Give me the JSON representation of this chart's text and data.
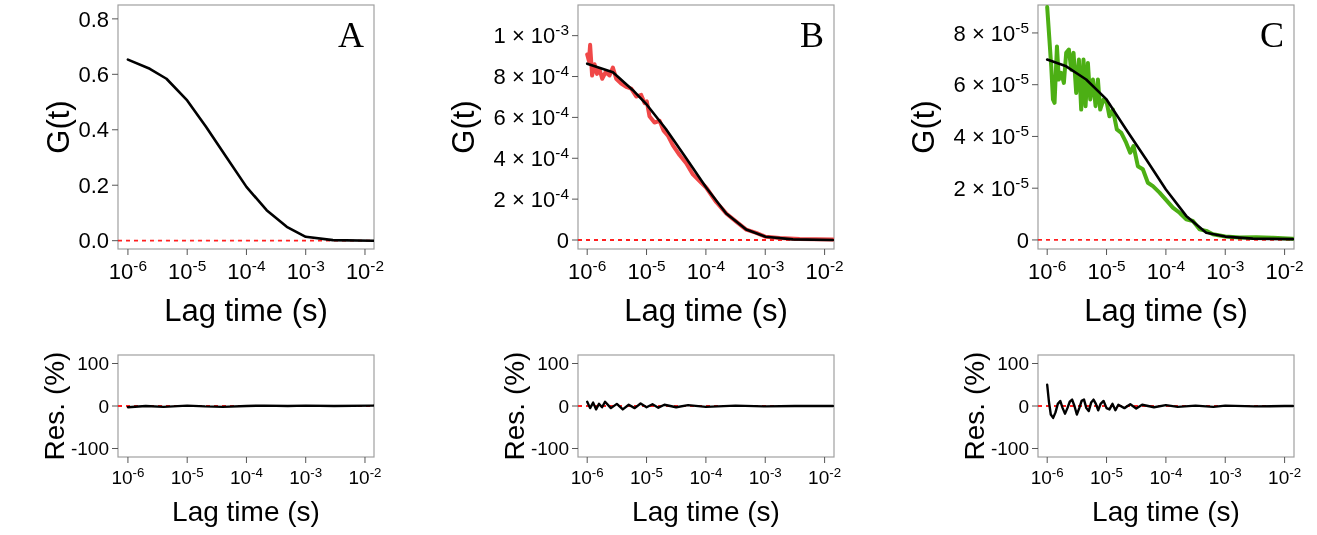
{
  "chart_data": [
    {
      "type": "line",
      "annotations": [
        "A"
      ],
      "xlabel": "Lag time (s)",
      "ylabel": "G(t)",
      "log": "x",
      "xlim": [
        6.8e-07,
        0.0142
      ],
      "ylim": [
        -0.03,
        0.85
      ],
      "xticks": [
        {
          "value": 1e-06,
          "label": "10$^{-6}$"
        },
        {
          "value": 1e-05,
          "label": "10$^{-5}$"
        },
        {
          "value": 0.0001,
          "label": "10$^{-4}$"
        },
        {
          "value": 0.001,
          "label": "10$^{-3}$"
        },
        {
          "value": 0.01,
          "label": "10$^{-2}$"
        }
      ],
      "yticks": [
        {
          "value": 0,
          "label": "0.0"
        },
        {
          "value": 0.2,
          "label": "0.2"
        },
        {
          "value": 0.4,
          "label": "0.4"
        },
        {
          "value": 0.6,
          "label": "0.6"
        },
        {
          "value": 0.8,
          "label": "0.8"
        }
      ],
      "ref_lines": [
        {
          "axis": "y",
          "value": 0,
          "color": "#ff2020",
          "line_style": "dashed"
        }
      ],
      "series": [
        {
          "color": "#000000",
          "x": [
            1e-06,
            2.34e-06,
            4.47e-06,
            1e-05,
            2.09e-05,
            4.57e-05,
            0.0001,
            0.000219,
            0.000479,
            0.001,
            0.00288,
            0.014
          ],
          "values": [
            0.653,
            0.62,
            0.584,
            0.506,
            0.41,
            0.302,
            0.194,
            0.11,
            0.05,
            0.014,
            0.002,
            0
          ]
        }
      ]
    },
    {
      "type": "line",
      "annotations": [
        "B"
      ],
      "xlabel": "Lag time (s)",
      "ylabel": "G(t)",
      "log": "x",
      "xlim": [
        7e-07,
        0.0144
      ],
      "ylim": [
        -4.4e-05,
        0.00115
      ],
      "xticks": [
        {
          "value": 1e-06,
          "label": "10$^{-6}$"
        },
        {
          "value": 1e-05,
          "label": "10$^{-5}$"
        },
        {
          "value": 0.0001,
          "label": "10$^{-4}$"
        },
        {
          "value": 0.001,
          "label": "10$^{-3}$"
        },
        {
          "value": 0.01,
          "label": "10$^{-2}$"
        }
      ],
      "yticks": [
        {
          "value": 0,
          "label": "0"
        },
        {
          "value": 0.0002,
          "label": "2 × 10$^{-4}$"
        },
        {
          "value": 0.0004,
          "label": "4 × 10$^{-4}$"
        },
        {
          "value": 0.0006,
          "label": "6 × 10$^{-4}$"
        },
        {
          "value": 0.0008,
          "label": "8 × 10$^{-4}$"
        },
        {
          "value": 0.001,
          "label": "1 × 10$^{-3}$"
        }
      ],
      "ref_lines": [
        {
          "axis": "y",
          "value": 0,
          "color": "#ff2020",
          "line_style": "dashed"
        }
      ],
      "series": [
        {
          "color": "#f04848",
          "x": [
            1e-06,
            1.07e-06,
            1.12e-06,
            1.21e-06,
            1.33e-06,
            1.46e-06,
            1.61e-06,
            1.79e-06,
            2.04e-06,
            2.38e-06,
            2.71e-06,
            3.08e-06,
            3.74e-06,
            4.54e-06,
            5.52e-06,
            6.7e-06,
            8.13e-06,
            9.25e-06,
            1.01e-05,
            1.12e-05,
            1.36e-05,
            1.66e-05,
            1.94e-05,
            2.29e-05,
            2.78e-05,
            3.6e-05,
            4.66e-05,
            6.04e-05,
            7.82e-05,
            0.000101,
            0.000149,
            0.00022,
            0.000324,
            0.000478,
            0.000705,
            0.00101,
            0.00175,
            0.00379,
            0.0138
          ],
          "values": [
            0.000908,
            0.000876,
            0.000955,
            0.000805,
            0.00086,
            0.000813,
            0.000836,
            0.000789,
            0.000821,
            0.000805,
            0.000844,
            0.000789,
            0.000765,
            0.000749,
            0.000741,
            0.000702,
            0.00071,
            0.00067,
            0.000678,
            0.000606,
            0.000575,
            0.000583,
            0.000535,
            0.000511,
            0.000463,
            0.000416,
            0.000376,
            0.000321,
            0.000289,
            0.000257,
            0.000186,
            0.00013,
            9e-05,
            5.1e-05,
            3.5e-05,
            1.6e-05,
            1e-05,
            5e-06,
            2e-06
          ]
        },
        {
          "color": "#000000",
          "x": [
            1e-06,
            2.71e-06,
            5.89e-06,
            1.01e-05,
            2.12e-05,
            4.66e-05,
            0.000101,
            0.00022,
            0.000478,
            0.00101,
            0.00293,
            0.0138
          ],
          "values": [
            0.000863,
            0.000821,
            0.000733,
            0.000662,
            0.000543,
            0.0004,
            0.000257,
            0.00013,
            5.1e-05,
            1.6e-05,
            3e-06,
            0
          ]
        }
      ]
    },
    {
      "type": "line",
      "annotations": [
        "C"
      ],
      "xlabel": "Lag time (s)",
      "ylabel": "G(t)",
      "log": "x",
      "xlim": [
        7e-07,
        0.0144
      ],
      "ylim": [
        -3.5e-06,
        9.08e-05
      ],
      "xticks": [
        {
          "value": 1e-06,
          "label": "10$^{-6}$"
        },
        {
          "value": 1e-05,
          "label": "10$^{-5}$"
        },
        {
          "value": 0.0001,
          "label": "10$^{-4}$"
        },
        {
          "value": 0.001,
          "label": "10$^{-3}$"
        },
        {
          "value": 0.01,
          "label": "10$^{-2}$"
        }
      ],
      "yticks": [
        {
          "value": 0,
          "label": "0"
        },
        {
          "value": 2e-05,
          "label": "2 × 10$^{-5}$"
        },
        {
          "value": 4e-05,
          "label": "4 × 10$^{-5}$"
        },
        {
          "value": 6e-05,
          "label": "6 × 10$^{-5}$"
        },
        {
          "value": 8e-05,
          "label": "8 × 10$^{-5}$"
        }
      ],
      "ref_lines": [
        {
          "axis": "y",
          "value": 0,
          "color": "#ff2020",
          "line_style": "dashed"
        }
      ],
      "series": [
        {
          "color": "#4caf14",
          "x": [
            1e-06,
            1.09e-06,
            1.17e-06,
            1.25e-06,
            1.33e-06,
            1.46e-06,
            1.57e-06,
            1.72e-06,
            1.91e-06,
            2.09e-06,
            2.32e-06,
            2.54e-06,
            2.78e-06,
            3.08e-06,
            3.42e-06,
            3.74e-06,
            4.09e-06,
            4.43e-06,
            4.85e-06,
            5.31e-06,
            5.89e-06,
            6.53e-06,
            7.15e-06,
            7.82e-06,
            8.9e-06,
            1.01e-05,
            1.12e-05,
            1.28e-05,
            1.49e-05,
            1.77e-05,
            2.14e-05,
            2.5e-05,
            2.85e-05,
            3.37e-05,
            4.09e-05,
            4.97e-05,
            6.04e-05,
            7.82e-05,
            9.87e-05,
            0.000131,
            0.00017,
            0.00022,
            0.000285,
            0.000369,
            0.000478,
            0.000619,
            0.001,
            0.00175,
            0.00333,
            0.00635,
            0.0138
          ],
          "values": [
            9e-05,
            7.74e-05,
            6.71e-05,
            5.43e-05,
            5.3e-05,
            7.48e-05,
            6.2e-05,
            6.46e-05,
            6.07e-05,
            7.23e-05,
            7.36e-05,
            6.58e-05,
            7.23e-05,
            5.68e-05,
            6.97e-05,
            5.04e-05,
            6.97e-05,
            5.17e-05,
            6.84e-05,
            5.43e-05,
            6.2e-05,
            5.17e-05,
            6.2e-05,
            5.04e-05,
            5.43e-05,
            5.3e-05,
            4.78e-05,
            5.04e-05,
            4.27e-05,
            4.14e-05,
            3.76e-05,
            3.37e-05,
            3.63e-05,
            2.85e-05,
            2.73e-05,
            2.21e-05,
            2.08e-05,
            1.83e-05,
            1.57e-05,
            1.25e-05,
            1.05e-05,
            8e-06,
            7.3e-06,
            4.1e-06,
            3.5e-06,
            2.2e-06,
            1.3e-06,
            9e-07,
            1e-06,
            8e-07,
            5e-07
          ]
        },
        {
          "color": "#000000",
          "x": [
            1e-06,
            2.09e-06,
            4.54e-06,
            1e-05,
            2.14e-05,
            4.67e-05,
            0.0001,
            0.00022,
            0.000478,
            0.001,
            0.00292,
            0.0138
          ],
          "values": [
            6.97e-05,
            6.71e-05,
            6.2e-05,
            5.43e-05,
            4.27e-05,
            3.11e-05,
            1.95e-05,
            9.3e-06,
            2.8e-06,
            1.3e-06,
            5e-07,
            3e-07
          ]
        }
      ]
    },
    {
      "type": "line",
      "xlabel": "Lag time (s)",
      "ylabel": "Res. (%)",
      "log": "x",
      "xlim": [
        6.8e-07,
        0.0142
      ],
      "ylim": [
        -120,
        120
      ],
      "xticks": [
        {
          "value": 1e-06,
          "label": "10$^{-6}$"
        },
        {
          "value": 1e-05,
          "label": "10$^{-5}$"
        },
        {
          "value": 0.0001,
          "label": "10$^{-4}$"
        },
        {
          "value": 0.001,
          "label": "10$^{-3}$"
        },
        {
          "value": 0.01,
          "label": "10$^{-2}$"
        }
      ],
      "yticks": [
        -100,
        0,
        100
      ],
      "ref_lines": [
        {
          "axis": "y",
          "value": 0,
          "color": "#ff2020",
          "line_style": "dashed"
        }
      ],
      "series": [
        {
          "color": "#000000",
          "x": [
            1e-06,
            2e-06,
            4e-06,
            1e-05,
            2e-05,
            4e-05,
            0.0001,
            0.0002,
            0.0005,
            0.001,
            0.003,
            0.0138
          ],
          "values": [
            -3,
            0,
            -2,
            1,
            -1,
            -2,
            0,
            1,
            0,
            1,
            0,
            1
          ]
        }
      ]
    },
    {
      "type": "line",
      "xlabel": "Lag time (s)",
      "ylabel": "Res. (%)",
      "log": "x",
      "xlim": [
        7e-07,
        0.0144
      ],
      "ylim": [
        -120,
        120
      ],
      "xticks": [
        {
          "value": 1e-06,
          "label": "10$^{-6}$"
        },
        {
          "value": 1e-05,
          "label": "10$^{-5}$"
        },
        {
          "value": 0.0001,
          "label": "10$^{-4}$"
        },
        {
          "value": 0.001,
          "label": "10$^{-3}$"
        },
        {
          "value": 0.01,
          "label": "10$^{-2}$"
        }
      ],
      "yticks": [
        -100,
        0,
        100
      ],
      "ref_lines": [
        {
          "axis": "y",
          "value": 0,
          "color": "#ff2020",
          "line_style": "dashed"
        }
      ],
      "series": [
        {
          "color": "#000000",
          "x": [
            1e-06,
            1.12e-06,
            1.26e-06,
            1.41e-06,
            1.58e-06,
            1.78e-06,
            2e-06,
            2.51e-06,
            3.16e-06,
            3.98e-06,
            5.01e-06,
            6.31e-06,
            7.94e-06,
            1e-05,
            1.26e-05,
            1.58e-05,
            2e-05,
            3.16e-05,
            5.01e-05,
            0.0001,
            0.000316,
            0.001,
            0.00316,
            0.0138
          ],
          "values": [
            10,
            -5,
            8,
            -8,
            5,
            -3,
            10,
            -5,
            5,
            -8,
            3,
            -5,
            6,
            -3,
            4,
            -4,
            3,
            -3,
            2,
            -2,
            1,
            -1,
            0,
            0
          ]
        }
      ]
    },
    {
      "type": "line",
      "xlabel": "Lag time (s)",
      "ylabel": "Res. (%)",
      "log": "x",
      "xlim": [
        7e-07,
        0.0144
      ],
      "ylim": [
        -120,
        120
      ],
      "xticks": [
        {
          "value": 1e-06,
          "label": "10$^{-6}$"
        },
        {
          "value": 1e-05,
          "label": "10$^{-5}$"
        },
        {
          "value": 0.0001,
          "label": "10$^{-4}$"
        },
        {
          "value": 0.001,
          "label": "10$^{-3}$"
        },
        {
          "value": 0.01,
          "label": "10$^{-2}$"
        }
      ],
      "yticks": [
        -100,
        0,
        100
      ],
      "ref_lines": [
        {
          "axis": "y",
          "value": 0,
          "color": "#ff2020",
          "line_style": "dashed"
        }
      ],
      "series": [
        {
          "color": "#000000",
          "x": [
            1e-06,
            1.07e-06,
            1.15e-06,
            1.26e-06,
            1.38e-06,
            1.51e-06,
            1.66e-06,
            1.82e-06,
            2e-06,
            2.19e-06,
            2.4e-06,
            2.63e-06,
            2.88e-06,
            3.16e-06,
            3.47e-06,
            3.8e-06,
            4.17e-06,
            4.57e-06,
            5.01e-06,
            5.5e-06,
            6.03e-06,
            6.61e-06,
            7.24e-06,
            7.94e-06,
            8.91e-06,
            1e-05,
            1.12e-05,
            1.26e-05,
            1.41e-05,
            1.58e-05,
            2e-05,
            2.51e-05,
            3.16e-05,
            3.98e-05,
            6.31e-05,
            0.0001,
            0.000158,
            0.000316,
            0.000631,
            0.001,
            0.00316,
            0.01,
            0.0138
          ],
          "values": [
            50,
            10,
            -20,
            -28,
            -15,
            5,
            12,
            -5,
            -18,
            -5,
            10,
            15,
            0,
            -20,
            -5,
            12,
            15,
            -5,
            -12,
            8,
            15,
            5,
            -10,
            5,
            12,
            -5,
            -8,
            5,
            -10,
            3,
            -5,
            4,
            -6,
            3,
            -3,
            2,
            -2,
            1,
            -2,
            1,
            -1,
            0,
            0
          ]
        }
      ]
    }
  ]
}
